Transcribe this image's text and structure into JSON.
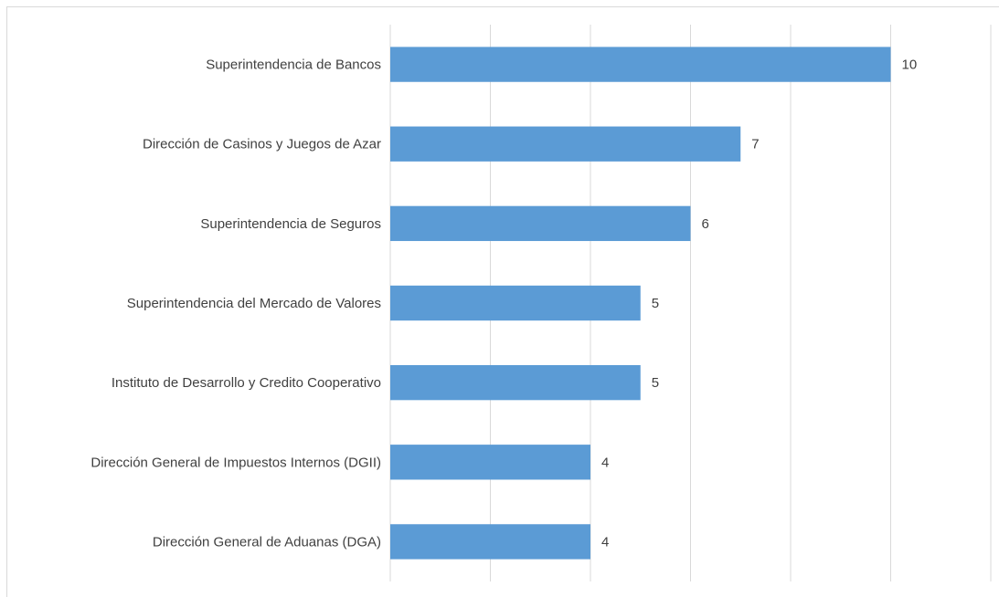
{
  "chart_data": {
    "type": "bar",
    "orientation": "horizontal",
    "categories": [
      "Superintendencia de Bancos",
      "Dirección de Casinos y Juegos de Azar",
      "Superintendencia de Seguros",
      "Superintendencia del Mercado de Valores",
      "Instituto de Desarrollo y Credito Cooperativo",
      "Dirección General de Impuestos Internos (DGII)",
      "Dirección General de Aduanas (DGA)"
    ],
    "values": [
      10,
      7,
      6,
      5,
      5,
      4,
      4
    ],
    "color": "#5b9bd5",
    "xlim": [
      0,
      12
    ],
    "xticks": [
      0,
      2,
      4,
      6,
      8,
      10,
      12
    ],
    "grid": true
  }
}
